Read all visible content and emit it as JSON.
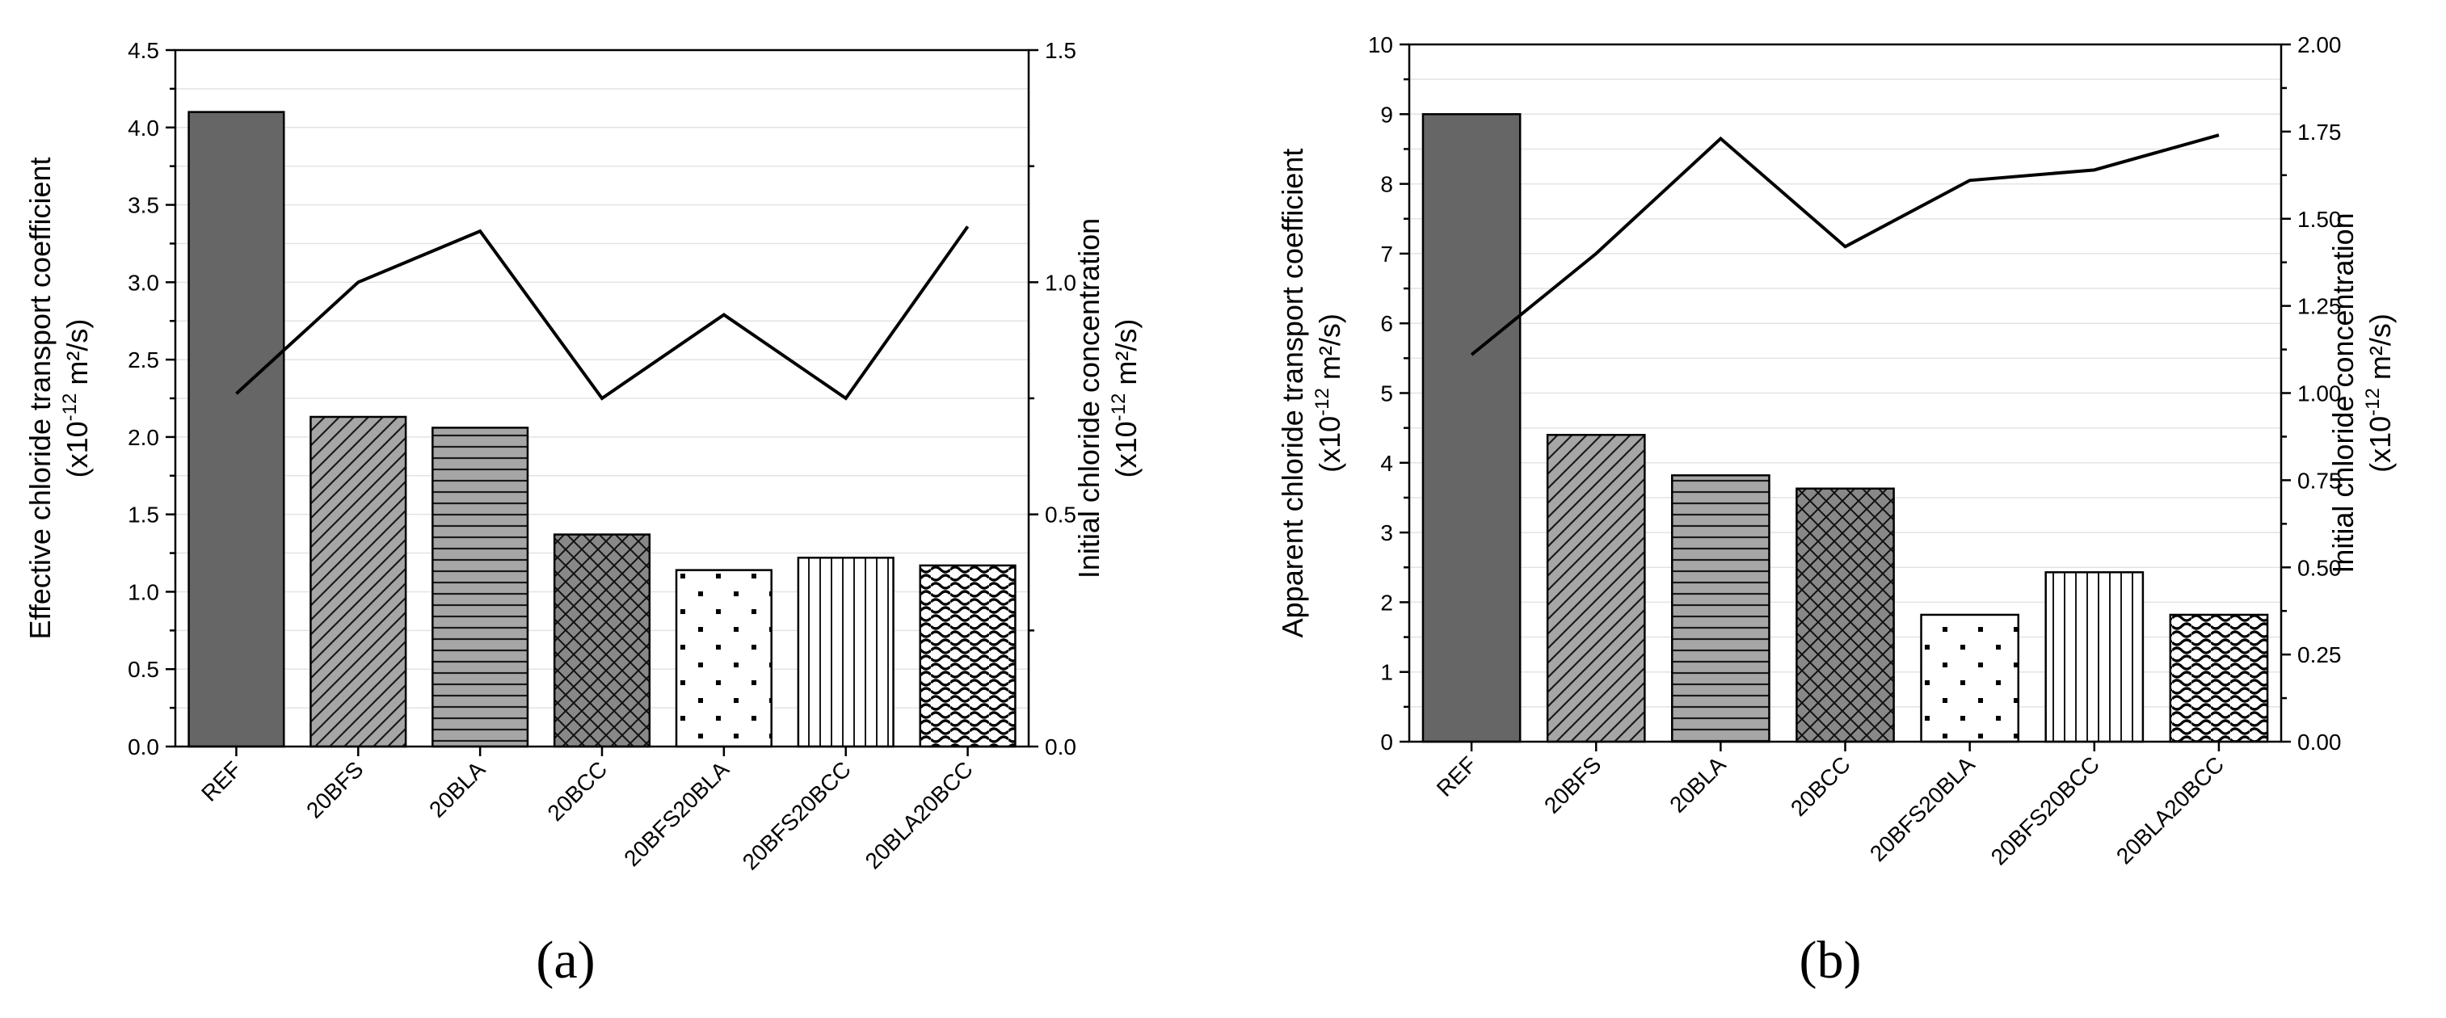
{
  "chart_data": [
    {
      "type": "bar",
      "panel_label": "(a)",
      "categories": [
        "REF",
        "20BFS",
        "20BLA",
        "20BCC",
        "20BFS20BLA",
        "20BFS20BCC",
        "20BLA20BCC"
      ],
      "series": [
        {
          "name": "Effective chloride transport coefficient",
          "type": "bar",
          "axis": "left",
          "values": [
            4.1,
            2.13,
            2.06,
            1.37,
            1.14,
            1.22,
            1.17
          ]
        },
        {
          "name": "Initial chloride concentration",
          "type": "line",
          "axis": "right",
          "values": [
            0.76,
            1.0,
            1.11,
            0.75,
            0.93,
            0.75,
            1.12
          ]
        }
      ],
      "ylabel_line1": "Effective chloride transport coefficient",
      "ylabel_line2": "(x10",
      "ylabel_sup": "-12",
      "ylabel_unit": " m²/s)",
      "y2label_line1": "Initial chloride concentration",
      "y2label_line2": "(x10",
      "y2label_sup": "-12",
      "y2label_unit": " m²/s)",
      "ylim": [
        0,
        4.5
      ],
      "y2lim": [
        0,
        1.5
      ],
      "yticks": [
        "0.0",
        "0.5",
        "1.0",
        "1.5",
        "2.0",
        "2.5",
        "3.0",
        "3.5",
        "4.0",
        "4.5"
      ],
      "y2ticks": [
        "0.0",
        "0.5",
        "1.0",
        "1.5"
      ],
      "grid": true
    },
    {
      "type": "bar",
      "panel_label": "(b)",
      "categories": [
        "REF",
        "20BFS",
        "20BLA",
        "20BCC",
        "20BFS20BLA",
        "20BFS20BCC",
        "20BLA20BCC"
      ],
      "series": [
        {
          "name": "Apparent chloride transport coefficient",
          "type": "bar",
          "axis": "left",
          "values": [
            9.0,
            4.4,
            3.82,
            3.63,
            1.82,
            2.43,
            1.82
          ]
        },
        {
          "name": "Initial chloride concentration",
          "type": "line",
          "axis": "right",
          "values": [
            1.11,
            1.4,
            1.73,
            1.42,
            1.61,
            1.64,
            1.74
          ]
        }
      ],
      "ylabel_line1": "Apparent chloride transport coefficient",
      "ylabel_line2": "(x10",
      "ylabel_sup": "-12",
      "ylabel_unit": " m²/s)",
      "y2label_line1": "Initial chloride concentration",
      "y2label_line2": "(x10",
      "y2label_sup": "-12",
      "y2label_unit": " m²/s)",
      "ylim": [
        0,
        10
      ],
      "y2lim": [
        0,
        2.0
      ],
      "yticks": [
        "0",
        "1",
        "2",
        "3",
        "4",
        "5",
        "6",
        "7",
        "8",
        "9",
        "10"
      ],
      "y2ticks": [
        "0.00",
        "0.25",
        "0.50",
        "0.75",
        "1.00",
        "1.25",
        "1.50",
        "1.75",
        "2.00"
      ],
      "grid": true
    }
  ]
}
